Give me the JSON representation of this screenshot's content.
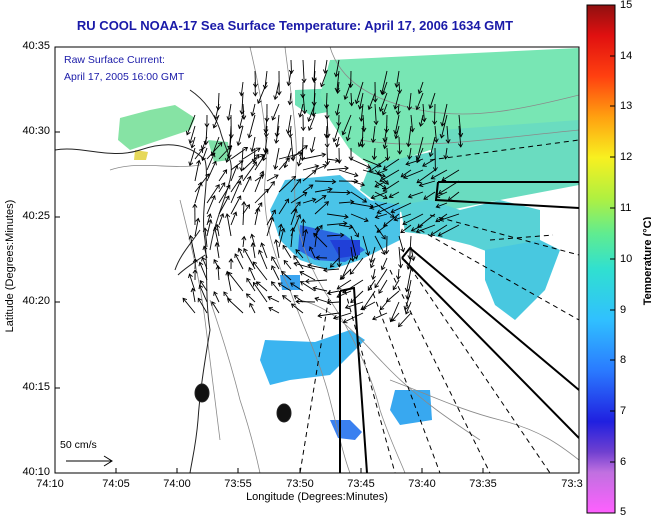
{
  "title": "RU COOL  NOAA-17  Sea Surface Temperature:  April 17, 2006 1634 GMT",
  "annotation": {
    "line1": "Raw Surface Current:",
    "line2": "April 17, 2005 16:00 GMT"
  },
  "map_data": {
    "xlabel": "Longitude (Degrees:Minutes)",
    "ylabel": "Latitude (Degrees:Minutes)",
    "x_ticks": [
      "74:10",
      "74:05",
      "74:00",
      "73:55",
      "73:50",
      "73:45",
      "73:40",
      "73:35",
      "73:3"
    ],
    "y_ticks": [
      "40:35",
      "40:30",
      "40:25",
      "40:20",
      "40:15",
      "40:10"
    ],
    "colorbar": {
      "label": "Temperature (°C)",
      "ticks": [
        "15",
        "14",
        "13",
        "12",
        "11",
        "10",
        "9",
        "8",
        "7",
        "6",
        "5"
      ],
      "range": [
        5,
        15
      ]
    },
    "scale_vector_label": "50 cm/s",
    "colors": {
      "title": "#1a1aa8",
      "sst_warm": "#7fe8b0",
      "sst_cool": "#3aa8ff",
      "sst_cold": "#2a5ae0"
    }
  }
}
